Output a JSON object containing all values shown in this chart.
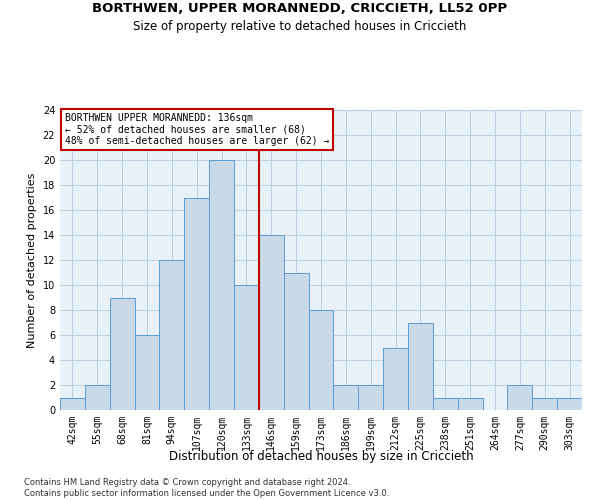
{
  "title1": "BORTHWEN, UPPER MORANNEDD, CRICCIETH, LL52 0PP",
  "title2": "Size of property relative to detached houses in Criccieth",
  "xlabel": "Distribution of detached houses by size in Criccieth",
  "ylabel": "Number of detached properties",
  "categories": [
    "42sqm",
    "55sqm",
    "68sqm",
    "81sqm",
    "94sqm",
    "107sqm",
    "120sqm",
    "133sqm",
    "146sqm",
    "159sqm",
    "173sqm",
    "186sqm",
    "199sqm",
    "212sqm",
    "225sqm",
    "238sqm",
    "251sqm",
    "264sqm",
    "277sqm",
    "290sqm",
    "303sqm"
  ],
  "values": [
    1,
    2,
    9,
    6,
    12,
    17,
    20,
    10,
    14,
    11,
    8,
    2,
    2,
    5,
    7,
    1,
    1,
    0,
    2,
    1,
    1
  ],
  "bar_color": "#c9d9e8",
  "bar_edge_color": "#5b9bd5",
  "vline_color": "#c00000",
  "vline_x": 7.5,
  "annotation_text": "BORTHWEN UPPER MORANNEDD: 136sqm\n← 52% of detached houses are smaller (68)\n48% of semi-detached houses are larger (62) →",
  "annotation_box_color": "#c00000",
  "ylim": [
    0,
    24
  ],
  "yticks": [
    0,
    2,
    4,
    6,
    8,
    10,
    12,
    14,
    16,
    18,
    20,
    22,
    24
  ],
  "grid_color": "#b8cfe4",
  "bg_color": "#e8f0f8",
  "footer": "Contains HM Land Registry data © Crown copyright and database right 2024.\nContains public sector information licensed under the Open Government Licence v3.0.",
  "title1_fontsize": 9.5,
  "title2_fontsize": 8.5,
  "xlabel_fontsize": 8.5,
  "ylabel_fontsize": 8,
  "tick_fontsize": 7,
  "annotation_fontsize": 7,
  "footer_fontsize": 6
}
